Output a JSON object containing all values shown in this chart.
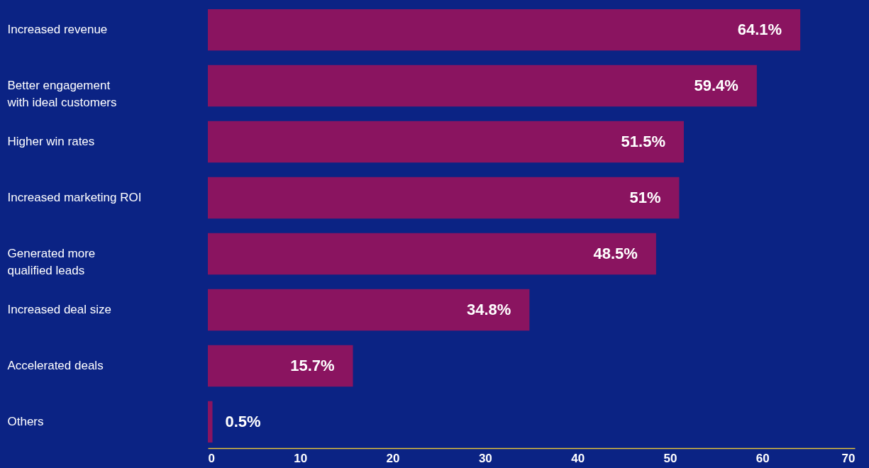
{
  "chart_data": {
    "type": "bar",
    "orientation": "horizontal",
    "categories": [
      "Increased revenue",
      "Better engagement with ideal customers",
      "Higher win rates",
      "Increased marketing ROI",
      "Generated more qualified leads",
      "Increased deal size",
      "Accelerated deals",
      "Others"
    ],
    "values": [
      64.1,
      59.4,
      51.5,
      51,
      48.5,
      34.8,
      15.7,
      0.5
    ],
    "value_labels": [
      "64.1%",
      "59.4%",
      "51.5%",
      "51%",
      "48.5%",
      "34.8%",
      "15.7%",
      "0.5%"
    ],
    "color": "#8a1460",
    "xlim": [
      0,
      70
    ],
    "xticks": [
      0,
      10,
      20,
      30,
      40,
      50,
      60,
      70
    ],
    "grid": false
  }
}
